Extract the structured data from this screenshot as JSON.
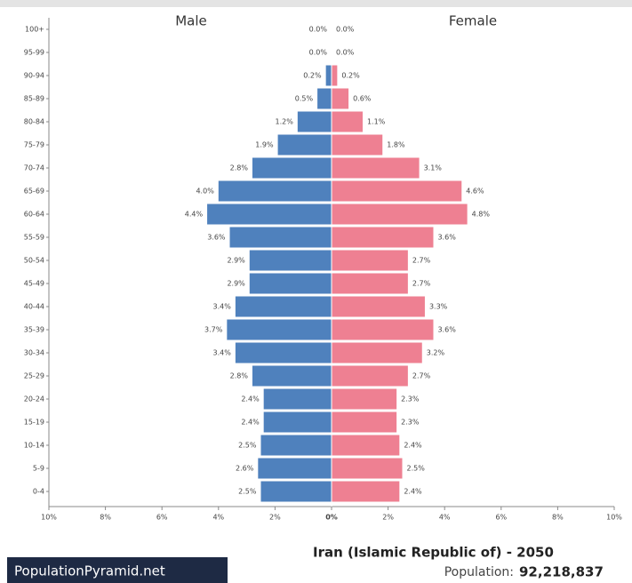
{
  "chart_data": {
    "type": "pyramid",
    "title": "Iran (Islamic Republic of) - 2050",
    "population_label": "Population:",
    "population": "92,218,837",
    "brand": "PopulationPyramid.net",
    "categories": [
      "100+",
      "95-99",
      "90-94",
      "85-89",
      "80-84",
      "75-79",
      "70-74",
      "65-69",
      "60-64",
      "55-59",
      "50-54",
      "45-49",
      "40-44",
      "35-39",
      "30-34",
      "25-29",
      "20-24",
      "15-19",
      "10-14",
      "5-9",
      "0-4"
    ],
    "series": [
      {
        "name": "Male",
        "color": "#4f81bd",
        "values": [
          0.0,
          0.0,
          0.2,
          0.5,
          1.2,
          1.9,
          2.8,
          4.0,
          4.4,
          3.6,
          2.9,
          2.9,
          3.4,
          3.7,
          3.4,
          2.8,
          2.4,
          2.4,
          2.5,
          2.6,
          2.5
        ],
        "value_labels": [
          "0.0%",
          "0.0%",
          "0.2%",
          "0.5%",
          "1.2%",
          "1.9%",
          "2.8%",
          "4.0%",
          "4.4%",
          "3.6%",
          "2.9%",
          "2.9%",
          "3.4%",
          "3.7%",
          "3.4%",
          "2.8%",
          "2.4%",
          "2.4%",
          "2.5%",
          "2.6%",
          "2.5%"
        ]
      },
      {
        "name": "Female",
        "color": "#ee8092",
        "values": [
          0.0,
          0.0,
          0.2,
          0.6,
          1.1,
          1.8,
          3.1,
          4.6,
          4.8,
          3.6,
          2.7,
          2.7,
          3.3,
          3.6,
          3.2,
          2.7,
          2.3,
          2.3,
          2.4,
          2.5,
          2.4
        ],
        "value_labels": [
          "0.0%",
          "0.0%",
          "0.2%",
          "0.6%",
          "1.1%",
          "1.8%",
          "3.1%",
          "4.6%",
          "4.8%",
          "3.6%",
          "2.7%",
          "2.7%",
          "3.3%",
          "3.6%",
          "3.2%",
          "2.7%",
          "2.3%",
          "2.3%",
          "2.4%",
          "2.5%",
          "2.4%"
        ]
      }
    ],
    "xlim": [
      -10,
      10
    ],
    "xticks": [
      {
        "value": -10,
        "label": "10%"
      },
      {
        "value": -8,
        "label": "8%"
      },
      {
        "value": -6,
        "label": "6%"
      },
      {
        "value": -4,
        "label": "4%"
      },
      {
        "value": -2,
        "label": "2%"
      },
      {
        "value": 0,
        "label": "0%"
      },
      {
        "value": 2,
        "label": "2%"
      },
      {
        "value": 4,
        "label": "4%"
      },
      {
        "value": 6,
        "label": "6%"
      },
      {
        "value": 8,
        "label": "8%"
      },
      {
        "value": 10,
        "label": "10%"
      }
    ]
  }
}
